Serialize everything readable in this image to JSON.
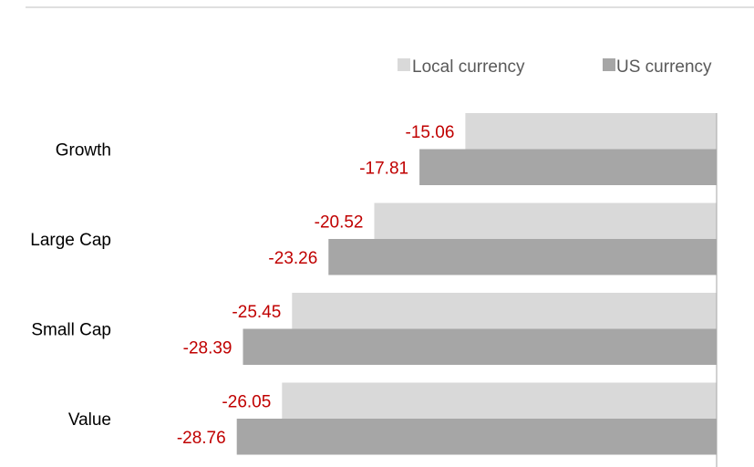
{
  "chart_data": {
    "type": "bar",
    "orientation": "horizontal",
    "title": "",
    "xlabel": "",
    "ylabel": "",
    "categories": [
      "Growth",
      "Large Cap",
      "Small Cap",
      "Value"
    ],
    "series": [
      {
        "name": "Local currency",
        "values": [
          -15.06,
          -20.52,
          -25.45,
          -26.05
        ],
        "color": "#d9d9d9"
      },
      {
        "name": "US currency",
        "values": [
          -17.81,
          -23.26,
          -28.39,
          -28.76
        ],
        "color": "#a6a6a6"
      }
    ],
    "value_labels": {
      "local": [
        "-15.06",
        "-20.52",
        "-25.45",
        "-26.05"
      ],
      "us": [
        "-17.81",
        "-23.26",
        "-28.39",
        "-28.76"
      ]
    },
    "label_color": "#c00000",
    "xlim": [
      -30,
      0
    ],
    "legend": {
      "position": "top-right",
      "items": [
        "Local currency",
        "US currency"
      ]
    },
    "grid": false
  }
}
